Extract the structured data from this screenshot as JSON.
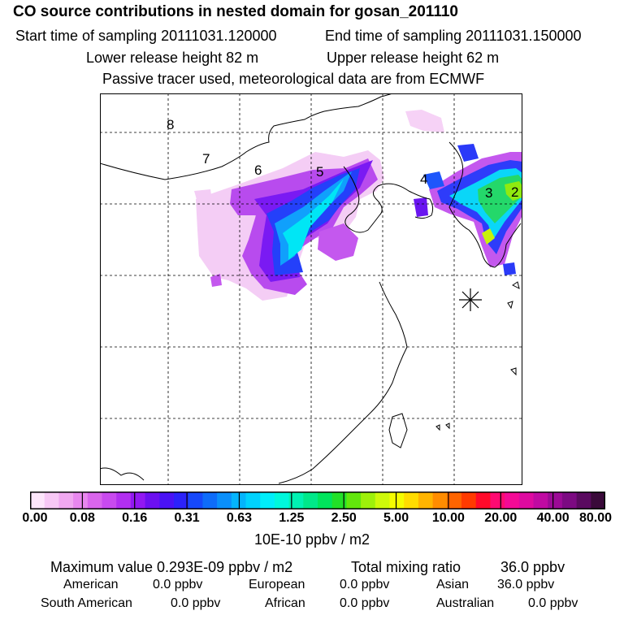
{
  "header": {
    "title": "CO  source contributions in nested domain for gosan_201110",
    "start_label": "Start time of sampling 20111031.120000",
    "end_label": "End time of sampling 20111031.150000",
    "lower_label": "Lower release height   82 m",
    "upper_label": "Upper release height   62 m",
    "note": "Passive tracer used, meteorological data are from ECMWF"
  },
  "map": {
    "receptor_symbol": "receptor-asterisk",
    "trajectory_labels": [
      "8",
      "7",
      "6",
      "5",
      "4",
      "3",
      "2"
    ]
  },
  "colorbar": {
    "ticks": [
      "0.00",
      "0.08",
      "0.16",
      "0.31",
      "0.63",
      "1.25",
      "2.50",
      "5.00",
      "10.00",
      "20.00",
      "40.00",
      "80.00"
    ],
    "unit": "10E-10 ppbv / m2",
    "colors": [
      "#fde6fb",
      "#f7c8f5",
      "#f0a8f0",
      "#e887ee",
      "#d965ec",
      "#c94aef",
      "#b22ff0",
      "#9218f2",
      "#6c10f0",
      "#4a12f5",
      "#2c22fa",
      "#1648fb",
      "#0e6cfa",
      "#0a8ffb",
      "#04b4fc",
      "#00d2fd",
      "#00eefa",
      "#00f8dc",
      "#00f2b2",
      "#00e889",
      "#00e45c",
      "#22e028",
      "#62e60c",
      "#9ef00a",
      "#cef80a",
      "#f5fc00",
      "#ffdc00",
      "#ffb400",
      "#ff8c00",
      "#ff6400",
      "#ff3a00",
      "#ff0a2a",
      "#ff0a72",
      "#f40a96",
      "#de0aa0",
      "#c00aa2",
      "#9c0a96",
      "#7c0a82",
      "#5a0a60",
      "#3a0a3a"
    ]
  },
  "summary": {
    "max_label": "Maximum value  0.293E-09 ppbv / m2",
    "total_label": "Total mixing ratio",
    "total_value": "36.0 ppbv"
  },
  "regions": [
    {
      "name": "American",
      "value": "0.0 ppbv"
    },
    {
      "name": "European",
      "value": "0.0 ppbv"
    },
    {
      "name": "Asian",
      "value": "36.0 ppbv"
    },
    {
      "name": "South American",
      "value": "0.0 ppbv"
    },
    {
      "name": "African",
      "value": "0.0 ppbv"
    },
    {
      "name": "Australian",
      "value": "0.0 ppbv"
    }
  ]
}
